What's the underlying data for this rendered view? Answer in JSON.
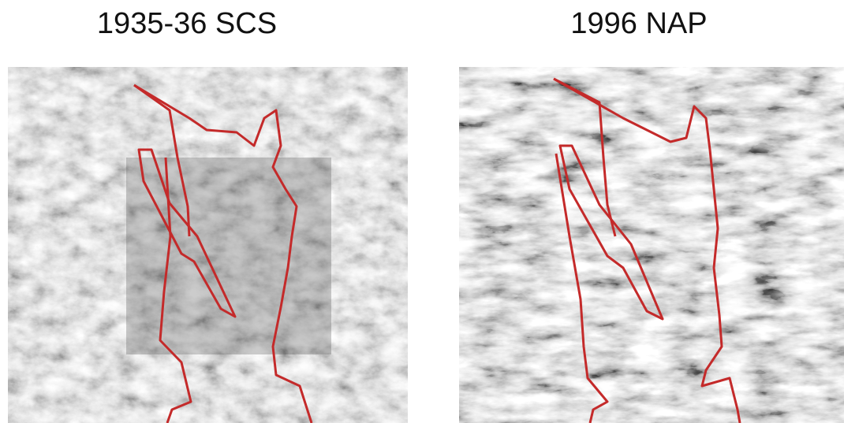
{
  "panels": [
    {
      "title": "1935-36 SCS"
    },
    {
      "title": "1996 NAP"
    }
  ]
}
